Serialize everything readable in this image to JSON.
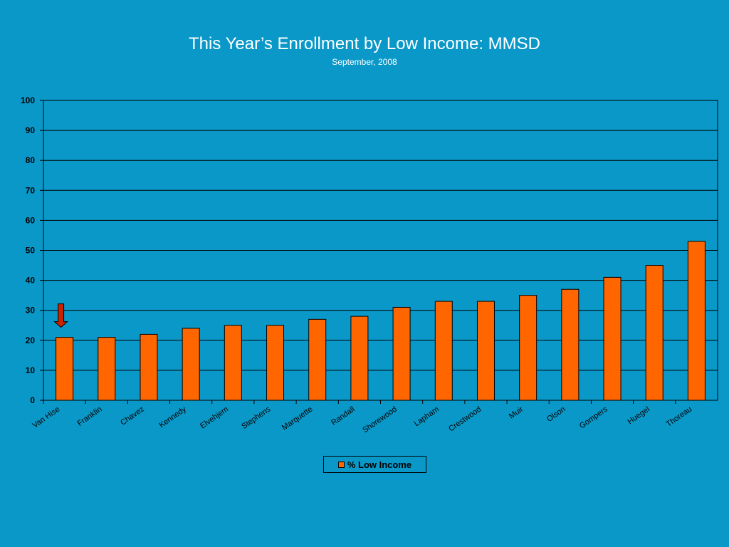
{
  "slide": {
    "title": "This Year’s Enrollment by Low Income: MMSD",
    "subtitle": "September, 2008",
    "background_color": "#0a98c8"
  },
  "chart_data": {
    "type": "bar",
    "categories": [
      "Van Hise",
      "Franklin",
      "Chavez",
      "Kennedy",
      "Elvehjem",
      "Stephens",
      "Marquette",
      "Randall",
      "Shorewood",
      "Lapham",
      "Crestwood",
      "Muir",
      "Olson",
      "Gompers",
      "Huegel",
      "Thoreau"
    ],
    "series": [
      {
        "name": "% Low Income",
        "values": [
          21,
          21,
          22,
          24,
          25,
          25,
          27,
          28,
          31,
          33,
          33,
          35,
          37,
          41,
          45,
          53
        ],
        "color": "#ff6600"
      }
    ],
    "ylim": [
      0,
      100
    ],
    "yticks": [
      0,
      10,
      20,
      30,
      40,
      50,
      60,
      70,
      80,
      90,
      100
    ],
    "grid": true,
    "legend_position": "bottom-center",
    "annotations": [
      {
        "type": "arrow",
        "category": "Van Hise",
        "direction": "down",
        "color": "#cc2200"
      }
    ]
  }
}
